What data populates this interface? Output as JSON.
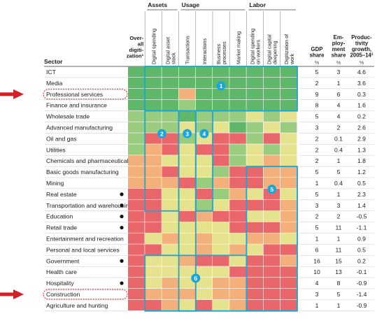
{
  "chart_data": {
    "type": "heatmap",
    "row_header": "Sector",
    "column_groups": [
      {
        "name": "Assets",
        "columns": [
          1,
          2
        ]
      },
      {
        "name": "Usage",
        "columns": [
          3,
          4,
          5,
          6
        ]
      },
      {
        "name": "Labor",
        "columns": [
          7,
          8,
          9
        ]
      }
    ],
    "heat_columns": [
      "Over-\nall\ndigiti-\nzation¹",
      "Digital spending",
      "Digital asset\nstock",
      "Transactions",
      "Interactions",
      "Business\nprocesses",
      "Market making",
      "Digital spending\non workers",
      "Digital capital\ndeepening",
      "Digitization of\nwork"
    ],
    "value_columns": [
      {
        "label": "GDP\nshare",
        "unit": "%"
      },
      {
        "label": "Em-\nploy-\nment\nshare",
        "unit": "%"
      },
      {
        "label": "Produc-\ntivity\ngrowth,\n2005–14²",
        "unit": "%"
      }
    ],
    "colors": {
      "G": "#5fb86a",
      "g": "#9acc7f",
      "y": "#e6e38f",
      "o": "#f3b07a",
      "r": "#e9676a",
      "box": "#1aa6d6",
      "highlight": "#d61e25"
    },
    "rows": [
      {
        "sector": "ICT",
        "cells": "GGGGGGGGGG",
        "gdp": "5",
        "emp": "3",
        "prod": "4.6",
        "dot": false
      },
      {
        "sector": "Media",
        "cells": "GGGGGGGGGG",
        "gdp": "2",
        "emp": "1",
        "prod": "3.6",
        "dot": false
      },
      {
        "sector": "Professional services",
        "cells": "GGGoGGGGGG",
        "gdp": "9",
        "emp": "6",
        "prod": "0.3",
        "dot": false
      },
      {
        "sector": "Finance and insurance",
        "cells": "GGGgGGGGGG",
        "gdp": "8",
        "emp": "4",
        "prod": "1.6",
        "dot": false
      },
      {
        "sector": "Wholesale trade",
        "cells": "gggGgggygy",
        "gdp": "5",
        "emp": "4",
        "prod": "0.2",
        "dot": false
      },
      {
        "sector": "Advanced manufacturing",
        "cells": "gggygyGgyg",
        "gdp": "3",
        "emp": "2",
        "prod": "2.6",
        "dot": false
      },
      {
        "sector": "Oil and gas",
        "cells": "grrgyrrgry",
        "gdp": "2",
        "emp": "0.1",
        "prod": "2.9",
        "dot": false
      },
      {
        "sector": "Utilities",
        "cells": "goryrrgygy",
        "gdp": "2",
        "emp": "0.4",
        "prod": "1.3",
        "dot": false
      },
      {
        "sector": "Chemicals and pharmaceuticals",
        "cells": "ooyyyrgyoy",
        "gdp": "2",
        "emp": "1",
        "prod": "1.8",
        "dot": false
      },
      {
        "sector": "Basic goods manufacturing",
        "cells": "ooryygrroo",
        "gdp": "5",
        "emp": "5",
        "prod": "1.2",
        "dot": false
      },
      {
        "sector": "Mining",
        "cells": "ooorgorroo",
        "gdp": "1",
        "emp": "0.4",
        "prod": "0.5",
        "dot": false
      },
      {
        "sector": "Real estate",
        "cells": "rryyrgoyry",
        "gdp": "5",
        "emp": "1",
        "prod": "2.3",
        "dot": true
      },
      {
        "sector": "Transportation and warehousing",
        "cells": "rryygyrrro",
        "gdp": "3",
        "emp": "3",
        "prod": "1.4",
        "dot": true
      },
      {
        "sector": "Education",
        "cells": "rryrorryyo",
        "gdp": "2",
        "emp": "2",
        "prod": "-0.5",
        "dot": true
      },
      {
        "sector": "Retail trade",
        "cells": "rryyyyrrro",
        "gdp": "5",
        "emp": "11",
        "prod": "-1.1",
        "dot": true
      },
      {
        "sector": "Entertainment and recreation",
        "cells": "ryoyoyyooy",
        "gdp": "1",
        "emp": "1",
        "prod": "0.9",
        "dot": false
      },
      {
        "sector": "Personal and local services",
        "cells": "rryyoyoyrr",
        "gdp": "6",
        "emp": "11",
        "prod": "0.5",
        "dot": false
      },
      {
        "sector": "Government",
        "cells": "ryyorryrro",
        "gdp": "16",
        "emp": "15",
        "prod": "0.2",
        "dot": true
      },
      {
        "sector": "Health care",
        "cells": "ryyyyyrrrr",
        "gdp": "10",
        "emp": "13",
        "prod": "-0.1",
        "dot": false
      },
      {
        "sector": "Hospitality",
        "cells": "ryoyyoorrr",
        "gdp": "4",
        "emp": "8",
        "prod": "-0.9",
        "dot": true
      },
      {
        "sector": "Construction",
        "cells": "roooyoorrr",
        "gdp": "3",
        "emp": "5",
        "prod": "-1.4",
        "dot": false
      },
      {
        "sector": "Agriculture and hunting",
        "cells": "rroyryorrr",
        "gdp": "1",
        "emp": "1",
        "prod": "-0.9",
        "dot": false
      }
    ],
    "highlighted_sectors": [
      "Professional services",
      "Construction"
    ],
    "boxes": [
      {
        "label": "1",
        "col_start": 1,
        "col_end": 9,
        "row_start": 0,
        "row_end": 3
      },
      {
        "label": "2",
        "col_start": 1,
        "col_end": 2,
        "row_start": 4,
        "row_end": 12
      },
      {
        "label": "3",
        "col_start": 3,
        "col_end": 3,
        "row_start": 4,
        "row_end": 21
      },
      {
        "label": "4",
        "col_start": 4,
        "col_end": 4,
        "row_start": 4,
        "row_end": 12
      },
      {
        "label": "5",
        "col_start": 7,
        "col_end": 9,
        "row_start": 9,
        "row_end": 21
      },
      {
        "label": "6",
        "col_start": 1,
        "col_end": 6,
        "row_start": 17,
        "row_end": 21
      }
    ]
  }
}
